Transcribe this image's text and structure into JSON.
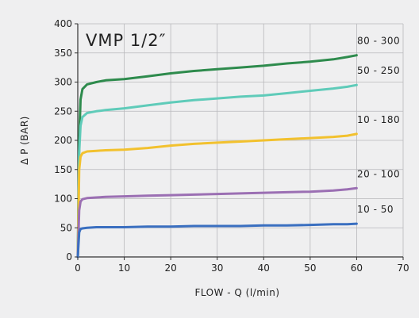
{
  "chart_data": {
    "type": "line",
    "title": "VMP 1/2″",
    "xlabel": "FLOW - Q (l/min)",
    "ylabel": "Δ P (BAR)",
    "xlim": [
      0,
      70
    ],
    "ylim": [
      0,
      400
    ],
    "xticks": [
      "0",
      "10",
      "20",
      "30",
      "40",
      "50",
      "60",
      "70"
    ],
    "yticks": [
      "0",
      "50",
      "100",
      "150",
      "200",
      "250",
      "300",
      "350",
      "400"
    ],
    "grid": true,
    "series": [
      {
        "name": "80 - 300",
        "color": "#2e8b4d",
        "x": [
          0,
          0.3,
          0.6,
          1,
          2,
          4,
          6,
          10,
          15,
          20,
          25,
          30,
          35,
          40,
          45,
          50,
          55,
          58,
          60
        ],
        "y": [
          0,
          200,
          270,
          288,
          296,
          300,
          303,
          305,
          310,
          315,
          319,
          322,
          325,
          328,
          332,
          335,
          339,
          343,
          346
        ]
      },
      {
        "name": "50 - 250",
        "color": "#5fcbb9",
        "x": [
          0,
          0.3,
          0.6,
          1,
          2,
          4,
          6,
          10,
          15,
          20,
          25,
          30,
          35,
          40,
          45,
          50,
          55,
          58,
          60
        ],
        "y": [
          0,
          180,
          225,
          240,
          247,
          250,
          252,
          255,
          260,
          265,
          269,
          272,
          275,
          277,
          281,
          285,
          289,
          292,
          295
        ]
      },
      {
        "name": "10 - 180",
        "color": "#f2c12e",
        "x": [
          0,
          0.3,
          0.6,
          1,
          2,
          4,
          6,
          10,
          15,
          20,
          25,
          30,
          35,
          40,
          45,
          50,
          55,
          58,
          60
        ],
        "y": [
          0,
          150,
          172,
          178,
          181,
          182,
          183,
          184,
          187,
          191,
          194,
          196,
          198,
          200,
          202,
          204,
          206,
          208,
          211
        ]
      },
      {
        "name": "20 - 100",
        "color": "#9b6fb3",
        "x": [
          0,
          0.3,
          0.6,
          1,
          2,
          4,
          6,
          10,
          15,
          20,
          25,
          30,
          35,
          40,
          45,
          50,
          55,
          58,
          60
        ],
        "y": [
          0,
          80,
          95,
          99,
          101,
          102,
          103,
          104,
          105,
          106,
          107,
          108,
          109,
          110,
          111,
          112,
          114,
          116,
          118
        ]
      },
      {
        "name": "10 - 50",
        "color": "#3a6fc0",
        "x": [
          0,
          0.3,
          0.6,
          1,
          2,
          4,
          6,
          10,
          15,
          20,
          25,
          30,
          35,
          40,
          45,
          50,
          55,
          58,
          60
        ],
        "y": [
          0,
          42,
          48,
          49,
          50,
          51,
          51,
          51,
          52,
          52,
          53,
          53,
          53,
          54,
          54,
          55,
          56,
          56,
          57
        ]
      }
    ]
  }
}
